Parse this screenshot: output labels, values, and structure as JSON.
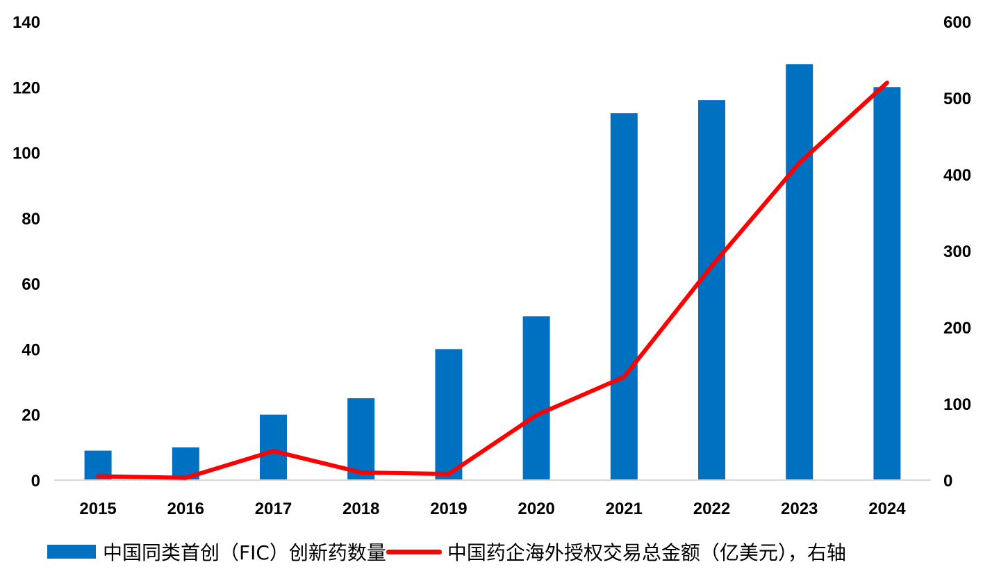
{
  "chart_data": {
    "type": "bar",
    "categories": [
      "2015",
      "2016",
      "2017",
      "2018",
      "2019",
      "2020",
      "2021",
      "2022",
      "2023",
      "2024"
    ],
    "series": [
      {
        "name": "中国同类首创（FIC）创新药数量",
        "type": "bar",
        "axis": "left",
        "color": "#0070C0",
        "values": [
          9,
          10,
          20,
          25,
          40,
          50,
          112,
          116,
          127,
          120
        ]
      },
      {
        "name": "中国药企海外授权交易总金额（亿美元），右轴",
        "type": "line",
        "axis": "right",
        "color": "#FF0000",
        "values": [
          5,
          3,
          38,
          10,
          8,
          85,
          135,
          280,
          415,
          520
        ]
      }
    ],
    "left_axis": {
      "ylim": [
        0,
        140
      ],
      "ticks": [
        "0",
        "20",
        "40",
        "60",
        "80",
        "100",
        "120",
        "140"
      ]
    },
    "right_axis": {
      "ylim": [
        0,
        600
      ],
      "ticks": [
        "0",
        "100",
        "200",
        "300",
        "400",
        "500",
        "600"
      ]
    },
    "grid": false,
    "legend_position": "bottom"
  }
}
